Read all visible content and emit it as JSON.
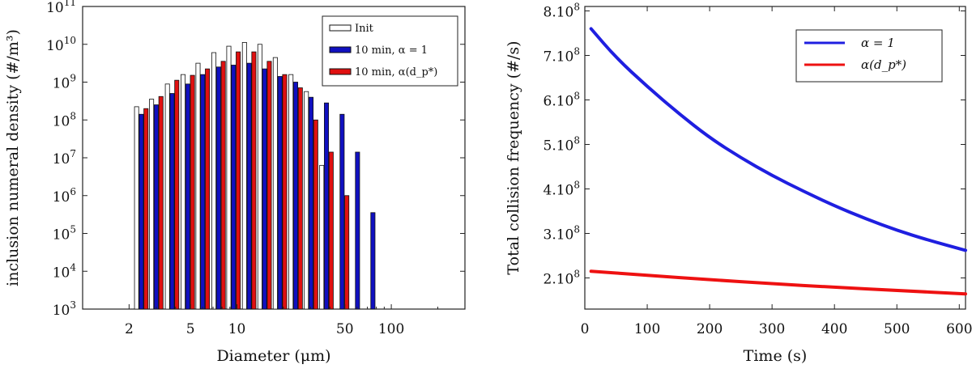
{
  "chart_data": [
    {
      "type": "bar",
      "scale_y": "log",
      "scale_x": "log",
      "title": "",
      "xlabel": "Diameter (μm)",
      "ylabel": "inclusion numeral density (#/m³)",
      "xlim": [
        1.0,
        300
      ],
      "ylim_exp": [
        3,
        11
      ],
      "x_ticks": [
        2,
        5,
        10,
        50,
        100
      ],
      "x_tick_labels": [
        "2",
        "5",
        "10",
        "50",
        "100"
      ],
      "y_ticks_exp": [
        3,
        4,
        5,
        6,
        7,
        8,
        9,
        10,
        11
      ],
      "y_tick_base": "10",
      "diameters": [
        2.4,
        3.0,
        3.8,
        4.8,
        6.0,
        7.6,
        9.5,
        12.0,
        15.1,
        19.0,
        24.0,
        30.2,
        38.0,
        48.0,
        60.4,
        76.0,
        95.7
      ],
      "series": [
        {
          "name": "Init",
          "color": "#ffffff",
          "exponents": [
            8.35,
            8.55,
            8.95,
            9.2,
            9.5,
            9.78,
            9.95,
            10.05,
            10.0,
            9.65,
            9.2,
            8.75,
            6.8,
            null,
            null,
            null,
            null
          ]
        },
        {
          "name": "10 min, α = 1",
          "color": "#1010c0",
          "exponents": [
            8.15,
            8.4,
            8.7,
            8.95,
            9.2,
            9.4,
            9.45,
            9.5,
            9.35,
            9.15,
            9.0,
            8.6,
            8.45,
            8.15,
            7.15,
            5.55,
            null
          ]
        },
        {
          "name": "10 min, α(d_p*)",
          "color": "#e01010",
          "exponents": [
            8.3,
            8.62,
            9.05,
            9.18,
            9.35,
            9.55,
            9.8,
            9.8,
            9.55,
            9.2,
            8.85,
            8.0,
            7.15,
            6.0,
            null,
            null,
            null
          ]
        }
      ],
      "legend": [
        "Init",
        "10 min, α = 1",
        "10 min, α(d_p*)"
      ],
      "legend_position": "top-right"
    },
    {
      "type": "line",
      "title": "",
      "xlabel": "Time (s)",
      "ylabel": "Total collision frequency (#/s)",
      "xlim": [
        0,
        610
      ],
      "ylim": [
        130000000.0,
        810000000.0
      ],
      "x_ticks": [
        0,
        100,
        200,
        300,
        400,
        500,
        600
      ],
      "x_tick_labels": [
        "0",
        "100",
        "200",
        "300",
        "400",
        "500",
        "600"
      ],
      "y_ticks": [
        200000000.0,
        300000000.0,
        400000000.0,
        500000000.0,
        600000000.0,
        700000000.0,
        800000000.0
      ],
      "y_tick_labels": [
        "2.10",
        "3.10",
        "4.10",
        "5.10",
        "6.10",
        "7.10",
        "8.10"
      ],
      "y_tick_exp": "8",
      "series": [
        {
          "name": "α = 1",
          "color": "#1f1fe0",
          "x": [
            10,
            50,
            100,
            150,
            200,
            250,
            300,
            350,
            400,
            450,
            500,
            550,
            610
          ],
          "y": [
            760000000.0,
            695000000.0,
            630000000.0,
            570000000.0,
            515000000.0,
            470000000.0,
            430000000.0,
            395000000.0,
            362000000.0,
            333000000.0,
            307000000.0,
            285000000.0,
            262000000.0
          ]
        },
        {
          "name": "α(d_p*)",
          "color": "#ee1111",
          "x": [
            10,
            100,
            200,
            300,
            400,
            500,
            610
          ],
          "y": [
            215000000.0,
            206000000.0,
            196000000.0,
            187000000.0,
            179000000.0,
            172000000.0,
            164000000.0
          ]
        }
      ],
      "legend": [
        "α = 1",
        "α(d_p*)"
      ],
      "legend_position": "top-right"
    }
  ]
}
